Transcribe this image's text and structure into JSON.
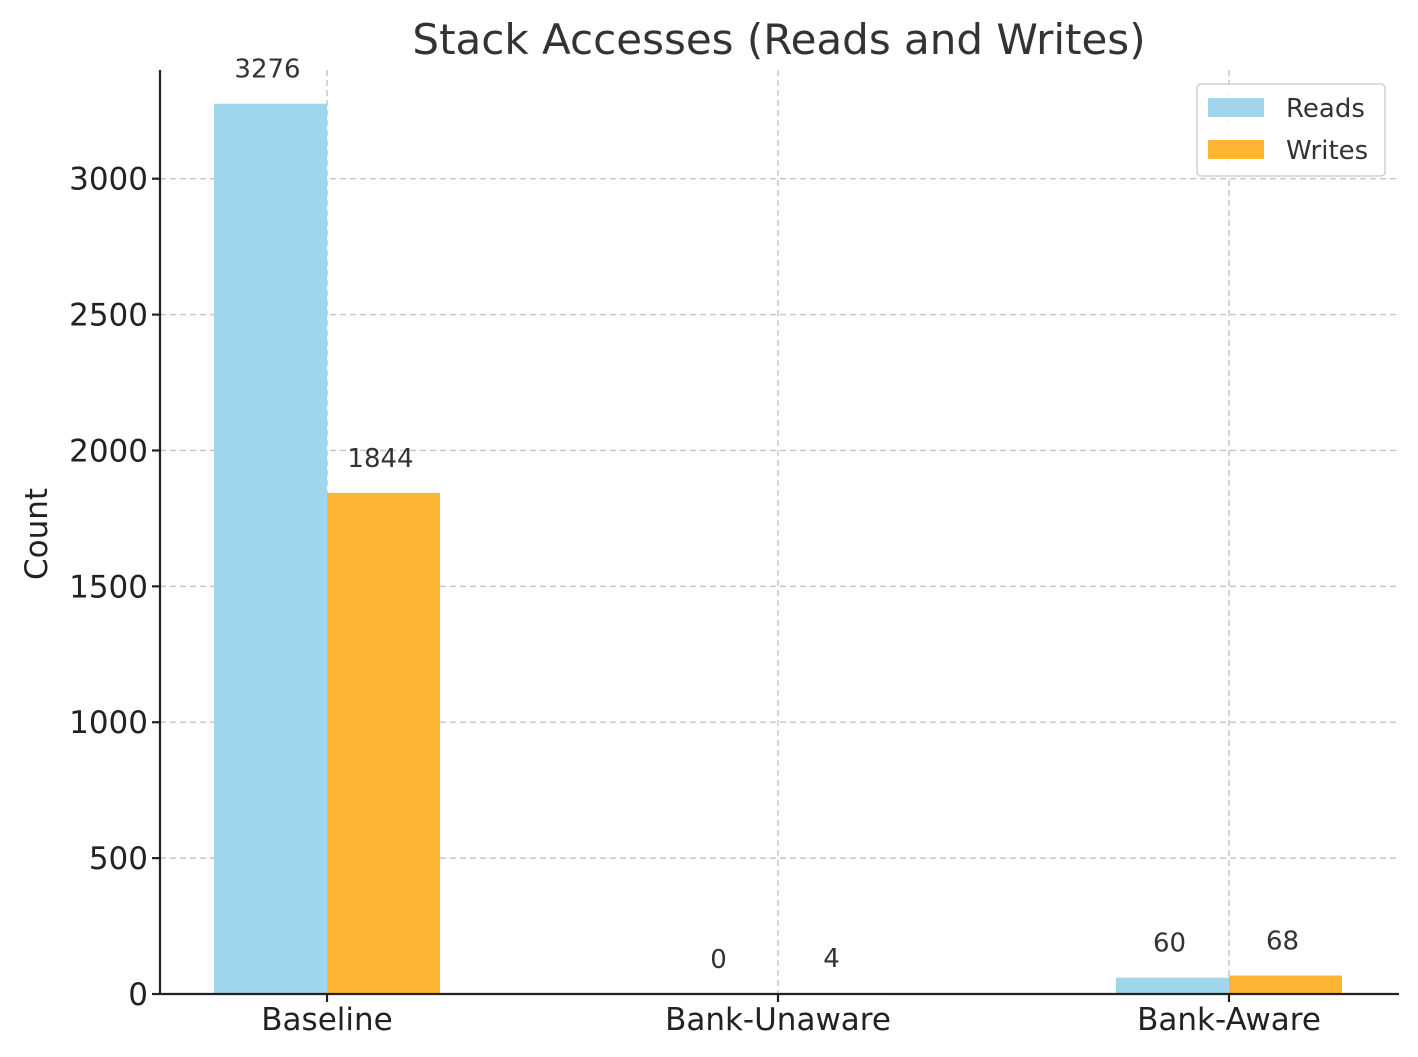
{
  "chart_data": {
    "type": "bar",
    "title": "Stack Accesses (Reads and Writes)",
    "xlabel": "",
    "ylabel": "Count",
    "categories": [
      "Baseline",
      "Bank-Unaware",
      "Bank-Aware"
    ],
    "series": [
      {
        "name": "Reads",
        "values": [
          3276,
          0,
          60
        ],
        "color": "#a0d6ed"
      },
      {
        "name": "Writes",
        "values": [
          1844,
          4,
          68
        ],
        "color": "#ffb534"
      }
    ],
    "ylim": [
      0,
      3400
    ],
    "yticks": [
      0,
      500,
      1000,
      1500,
      2000,
      2500,
      3000
    ],
    "grid": true,
    "legend": "top-right",
    "data_labels": true
  }
}
